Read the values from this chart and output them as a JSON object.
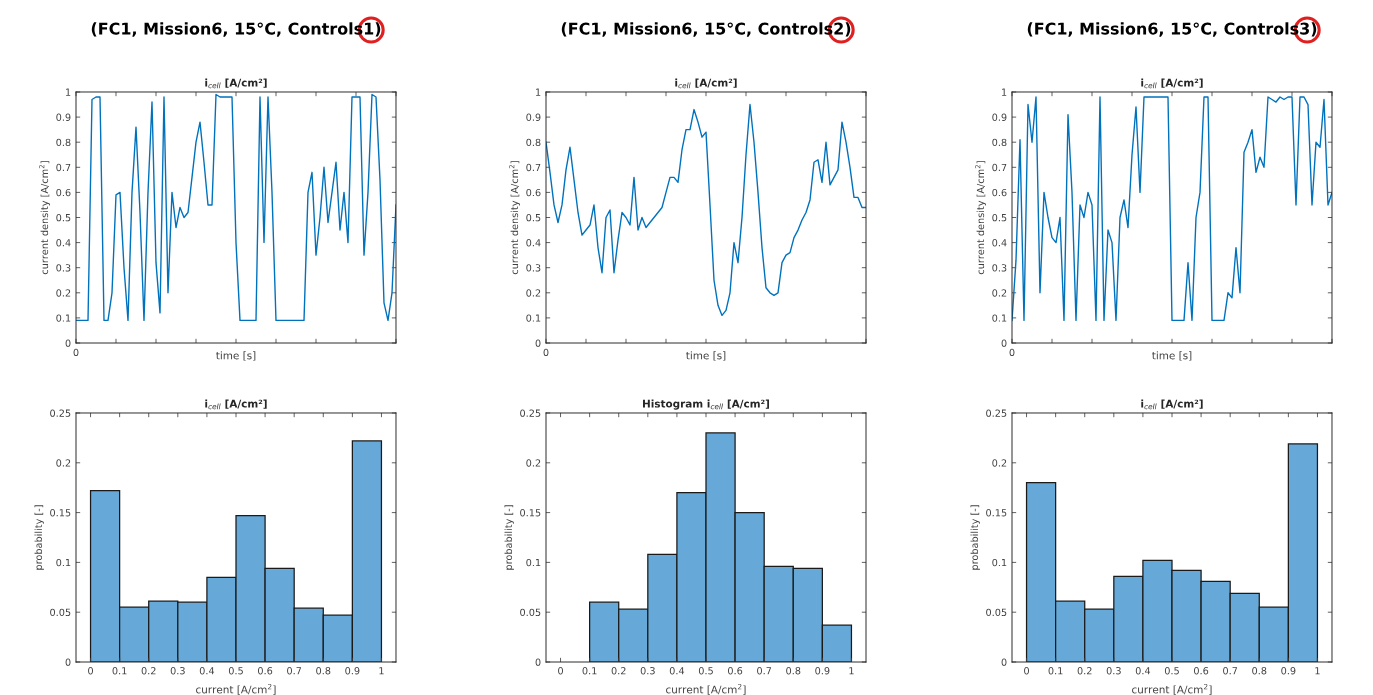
{
  "chart_data": [
    {
      "type": "line",
      "title": "(FC1, Mission6, 15°C, Controls1)",
      "subtitle": "i$_{cell}$ [A/cm²]",
      "xlabel": "time [s]",
      "ylabel": "current density [A/cm$^{2}$]",
      "color": "#0072bd",
      "ylim": [
        0,
        1
      ],
      "tick_labels": "y",
      "annotations": [
        "0"
      ],
      "yticks": [
        0,
        0.1,
        0.2,
        0.3,
        0.4,
        0.5,
        0.6,
        0.7,
        0.8,
        0.9,
        1
      ],
      "categories": [
        null,
        null,
        null,
        null,
        null,
        null,
        null,
        null,
        null,
        null,
        null,
        null,
        null,
        null,
        null,
        null,
        null,
        null,
        null,
        null,
        null,
        null,
        null,
        null,
        null,
        null,
        null,
        null,
        null,
        null,
        null,
        null,
        null,
        null,
        null,
        null,
        null,
        null,
        null,
        null,
        null,
        null,
        null,
        null,
        null,
        null,
        null,
        null,
        null,
        null,
        null,
        null,
        null,
        null,
        null,
        null,
        null,
        null,
        null,
        null,
        null,
        null,
        null,
        null,
        null,
        null,
        null,
        null,
        null,
        null,
        null,
        null,
        null,
        null,
        null,
        null,
        null,
        null,
        null,
        null,
        null
      ],
      "values": [
        0.09,
        0.09,
        0.09,
        0.09,
        0.97,
        0.98,
        0.98,
        0.09,
        0.09,
        0.2,
        0.59,
        0.6,
        0.3,
        0.09,
        0.6,
        0.86,
        0.52,
        0.09,
        0.6,
        0.96,
        0.32,
        0.12,
        0.98,
        0.2,
        0.6,
        0.46,
        0.54,
        0.5,
        0.52,
        0.66,
        0.8,
        0.88,
        0.72,
        0.55,
        0.55,
        0.99,
        0.98,
        0.98,
        0.98,
        0.98,
        0.4,
        0.09,
        0.09,
        0.09,
        0.09,
        0.09,
        0.98,
        0.4,
        0.98,
        0.6,
        0.09,
        0.09,
        0.09,
        0.09,
        0.09,
        0.09,
        0.09,
        0.09,
        0.6,
        0.68,
        0.35,
        0.5,
        0.7,
        0.48,
        0.6,
        0.72,
        0.45,
        0.6,
        0.4,
        0.98,
        0.98,
        0.98,
        0.35,
        0.6,
        0.99,
        0.98,
        0.65,
        0.16,
        0.09,
        0.2,
        0.55
      ]
    },
    {
      "type": "line",
      "title": "(FC1, Mission6, 15°C, Controls2)",
      "subtitle": "i$_{cell}$ [A/cm²]",
      "xlabel": "time [s]",
      "ylabel": "current density [A/cm$^{2}$]",
      "color": "#0072bd",
      "ylim": [
        0,
        1
      ],
      "tick_labels": "y",
      "annotations": [
        "0"
      ],
      "yticks": [
        0,
        0.1,
        0.2,
        0.3,
        0.4,
        0.5,
        0.6,
        0.7,
        0.8,
        0.9,
        1
      ],
      "categories": [
        null,
        null,
        null,
        null,
        null,
        null,
        null,
        null,
        null,
        null,
        null,
        null,
        null,
        null,
        null,
        null,
        null,
        null,
        null,
        null,
        null,
        null,
        null,
        null,
        null,
        null,
        null,
        null,
        null,
        null,
        null,
        null,
        null,
        null,
        null,
        null,
        null,
        null,
        null,
        null,
        null,
        null,
        null,
        null,
        null,
        null,
        null,
        null,
        null,
        null,
        null,
        null,
        null,
        null,
        null,
        null,
        null,
        null,
        null,
        null,
        null,
        null,
        null,
        null,
        null,
        null,
        null,
        null,
        null,
        null,
        null,
        null,
        null,
        null,
        null,
        null,
        null,
        null,
        null,
        null,
        null
      ],
      "values": [
        0.8,
        0.68,
        0.55,
        0.48,
        0.55,
        0.69,
        0.78,
        0.65,
        0.52,
        0.43,
        0.45,
        0.47,
        0.55,
        0.38,
        0.28,
        0.5,
        0.53,
        0.28,
        0.41,
        0.52,
        0.5,
        0.47,
        0.66,
        0.45,
        0.5,
        0.46,
        0.48,
        0.5,
        0.52,
        0.54,
        0.6,
        0.66,
        0.66,
        0.64,
        0.77,
        0.85,
        0.85,
        0.93,
        0.88,
        0.82,
        0.84,
        0.55,
        0.25,
        0.15,
        0.11,
        0.13,
        0.2,
        0.4,
        0.32,
        0.5,
        0.75,
        0.95,
        0.8,
        0.6,
        0.38,
        0.22,
        0.2,
        0.19,
        0.2,
        0.32,
        0.35,
        0.36,
        0.42,
        0.45,
        0.49,
        0.52,
        0.57,
        0.72,
        0.73,
        0.64,
        0.8,
        0.63,
        0.66,
        0.69,
        0.88,
        0.8,
        0.7,
        0.58,
        0.58,
        0.54,
        0.54
      ]
    },
    {
      "type": "line",
      "title": "(FC1, Mission6, 15°C, Controls3)",
      "subtitle": "i$_{cell}$ [A/cm²]",
      "xlabel": "time [s]",
      "ylabel": "current density [A/cm$^{2}$]",
      "color": "#0072bd",
      "ylim": [
        0,
        1
      ],
      "tick_labels": "y",
      "annotations": [
        "0"
      ],
      "yticks": [
        0,
        0.1,
        0.2,
        0.3,
        0.4,
        0.5,
        0.6,
        0.7,
        0.8,
        0.9,
        1
      ],
      "categories": [
        null,
        null,
        null,
        null,
        null,
        null,
        null,
        null,
        null,
        null,
        null,
        null,
        null,
        null,
        null,
        null,
        null,
        null,
        null,
        null,
        null,
        null,
        null,
        null,
        null,
        null,
        null,
        null,
        null,
        null,
        null,
        null,
        null,
        null,
        null,
        null,
        null,
        null,
        null,
        null,
        null,
        null,
        null,
        null,
        null,
        null,
        null,
        null,
        null,
        null,
        null,
        null,
        null,
        null,
        null,
        null,
        null,
        null,
        null,
        null,
        null,
        null,
        null,
        null,
        null,
        null,
        null,
        null,
        null,
        null,
        null,
        null,
        null,
        null,
        null,
        null,
        null,
        null,
        null,
        null,
        null
      ],
      "values": [
        0.09,
        0.33,
        0.81,
        0.09,
        0.95,
        0.8,
        0.98,
        0.2,
        0.6,
        0.5,
        0.42,
        0.4,
        0.5,
        0.09,
        0.91,
        0.6,
        0.09,
        0.55,
        0.5,
        0.6,
        0.55,
        0.09,
        0.98,
        0.09,
        0.45,
        0.4,
        0.09,
        0.5,
        0.57,
        0.46,
        0.75,
        0.94,
        0.6,
        0.98,
        0.98,
        0.98,
        0.98,
        0.98,
        0.98,
        0.98,
        0.09,
        0.09,
        0.09,
        0.09,
        0.32,
        0.09,
        0.5,
        0.6,
        0.98,
        0.98,
        0.09,
        0.09,
        0.09,
        0.09,
        0.2,
        0.18,
        0.38,
        0.2,
        0.76,
        0.8,
        0.85,
        0.68,
        0.74,
        0.7,
        0.98,
        0.97,
        0.96,
        0.98,
        0.97,
        0.98,
        0.98,
        0.55,
        0.98,
        0.98,
        0.95,
        0.55,
        0.8,
        0.78,
        0.97,
        0.55,
        0.6
      ]
    },
    {
      "type": "histogram",
      "subtitle": "i$_{cell}$ [A/cm²]",
      "xlabel": "current [A/cm$^{2}$]",
      "ylabel": "probability [-]",
      "color": "#66a9d8",
      "xlim": [
        -0.05,
        1.05
      ],
      "ylim": [
        0,
        0.25
      ],
      "xticks": [
        0,
        0.1,
        0.2,
        0.3,
        0.4,
        0.5,
        0.6,
        0.7,
        0.8,
        0.9,
        1
      ],
      "yticks": [
        0,
        0.05,
        0.1,
        0.15,
        0.2,
        0.25
      ],
      "bins": [
        0,
        0.1,
        0.2,
        0.3,
        0.4,
        0.5,
        0.6,
        0.7,
        0.8,
        0.9,
        1
      ],
      "values": [
        0.172,
        0.055,
        0.061,
        0.06,
        0.085,
        0.147,
        0.094,
        0.054,
        0.047,
        0.222
      ]
    },
    {
      "type": "histogram",
      "subtitle": "Histogram i$_{cell}$ [A/cm²]",
      "xlabel": "current [A/cm$^{2}$]",
      "ylabel": "probability [-]",
      "color": "#66a9d8",
      "xlim": [
        -0.05,
        1.05
      ],
      "ylim": [
        0,
        0.25
      ],
      "xticks": [
        0,
        0.1,
        0.2,
        0.3,
        0.4,
        0.5,
        0.6,
        0.7,
        0.8,
        0.9,
        1
      ],
      "yticks": [
        0,
        0.05,
        0.1,
        0.15,
        0.2,
        0.25
      ],
      "bins": [
        0,
        0.1,
        0.2,
        0.3,
        0.4,
        0.5,
        0.6,
        0.7,
        0.8,
        0.9,
        1
      ],
      "values": [
        0,
        0.06,
        0.053,
        0.108,
        0.17,
        0.23,
        0.15,
        0.096,
        0.094,
        0.037
      ]
    },
    {
      "type": "histogram",
      "subtitle": "i$_{cell}$ [A/cm²]",
      "xlabel": "current [A/cm$^{2}$]",
      "ylabel": "probability [-]",
      "color": "#66a9d8",
      "xlim": [
        -0.05,
        1.05
      ],
      "ylim": [
        0,
        0.25
      ],
      "xticks": [
        0,
        0.1,
        0.2,
        0.3,
        0.4,
        0.5,
        0.6,
        0.7,
        0.8,
        0.9,
        1
      ],
      "yticks": [
        0,
        0.05,
        0.1,
        0.15,
        0.2,
        0.25
      ],
      "bins": [
        0,
        0.1,
        0.2,
        0.3,
        0.4,
        0.5,
        0.6,
        0.7,
        0.8,
        0.9,
        1
      ],
      "values": [
        0.18,
        0.061,
        0.053,
        0.086,
        0.102,
        0.092,
        0.081,
        0.069,
        0.055,
        0.219
      ]
    }
  ]
}
